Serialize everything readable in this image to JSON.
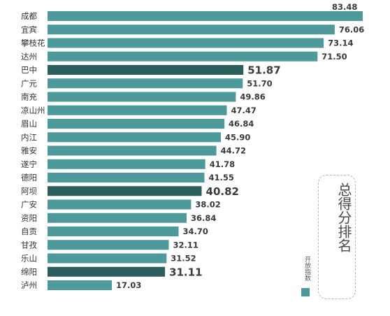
{
  "chart_data": {
    "type": "bar",
    "orientation": "horizontal",
    "title": "总得分排名",
    "legend": {
      "label": "开放指数",
      "placement": "bottom-right"
    },
    "categories": [
      "成都",
      "宜宾",
      "攀枝花",
      "达州",
      "巴中",
      "广元",
      "南充",
      "凉山州",
      "眉山",
      "内江",
      "雅安",
      "遂宁",
      "德阳",
      "阿坝",
      "广安",
      "资阳",
      "自贡",
      "甘孜",
      "乐山",
      "绵阳",
      "泸州"
    ],
    "values": [
      83.48,
      76.06,
      73.14,
      71.5,
      51.87,
      51.7,
      49.86,
      47.47,
      46.84,
      45.9,
      44.72,
      41.78,
      41.55,
      40.82,
      38.02,
      36.84,
      34.7,
      32.11,
      31.52,
      31.11,
      17.03
    ],
    "value_labels": [
      "83.48",
      "76.06",
      "73.14",
      "71.50",
      "51.87",
      "51.70",
      "49.86",
      "47.47",
      "46.84",
      "45.90",
      "44.72",
      "41.78",
      "41.55",
      "40.82",
      "38.02",
      "36.84",
      "34.70",
      "32.11",
      "31.52",
      "31.11",
      "17.03"
    ],
    "highlighted": [
      "巴中",
      "阿坝",
      "绵阳"
    ],
    "colors": {
      "bar": "#4e9a9a",
      "highlight": "#2d5e5e",
      "legend": "#4e9a9a"
    },
    "xlim": [
      0,
      85
    ],
    "grid": false
  }
}
